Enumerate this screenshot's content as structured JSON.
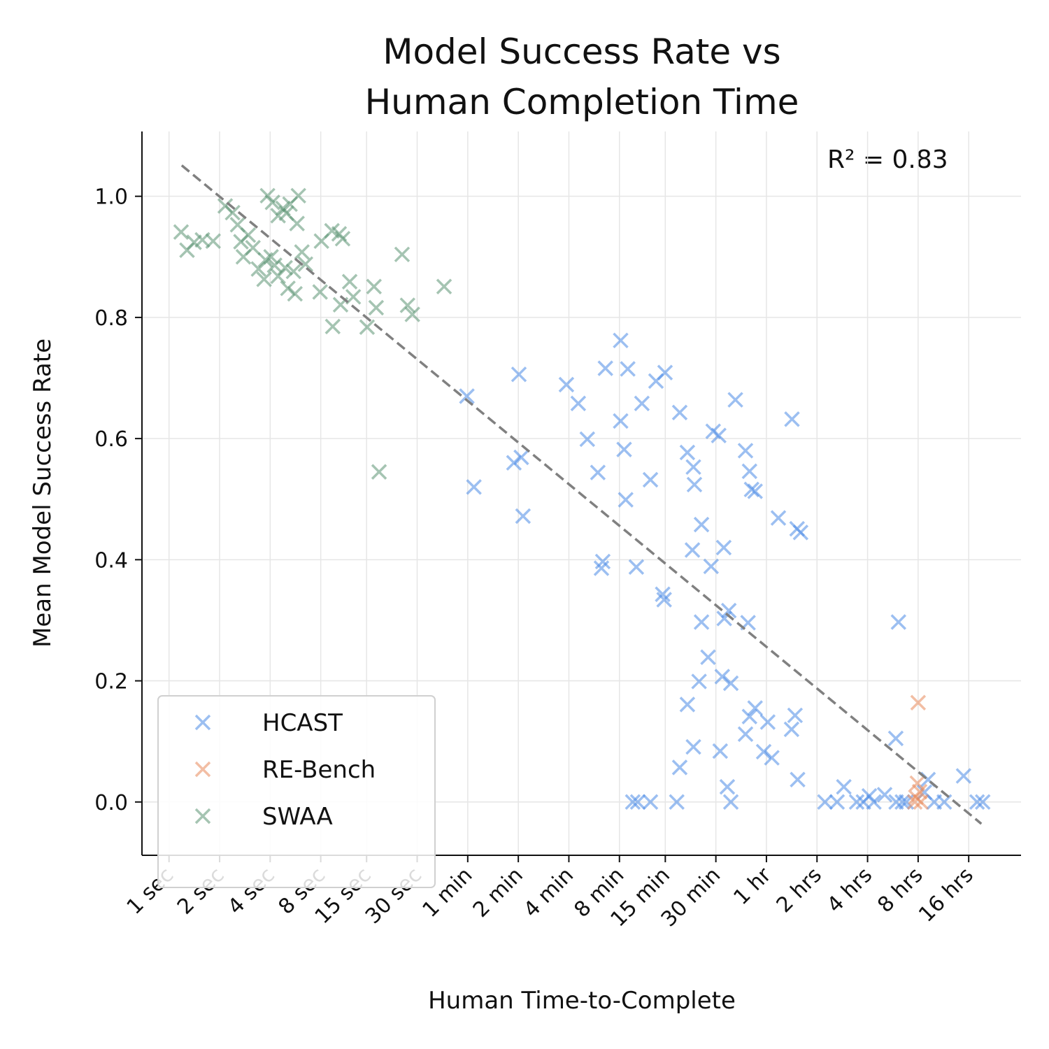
{
  "chart_data": {
    "type": "scatter",
    "title": "Model Success Rate vs\nHuman Completion Time",
    "xlabel": "Human Time-to-Complete",
    "ylabel": "Mean Model Success Rate",
    "annotation": "R² = 0.83",
    "xscale": "log",
    "grid": true,
    "legend": "lower left",
    "xlim": [
      0.69,
      118000
    ],
    "ylim": [
      -0.088,
      1.107
    ],
    "xticks": [
      {
        "value": 1,
        "label": "1 sec"
      },
      {
        "value": 2,
        "label": "2 sec"
      },
      {
        "value": 4,
        "label": "4 sec"
      },
      {
        "value": 8,
        "label": "8 sec"
      },
      {
        "value": 15,
        "label": "15 sec"
      },
      {
        "value": 30,
        "label": "30 sec"
      },
      {
        "value": 60,
        "label": "1 min"
      },
      {
        "value": 120,
        "label": "2 min"
      },
      {
        "value": 240,
        "label": "4 min"
      },
      {
        "value": 480,
        "label": "8 min"
      },
      {
        "value": 900,
        "label": "15 min"
      },
      {
        "value": 1800,
        "label": "30 min"
      },
      {
        "value": 3600,
        "label": "1 hr"
      },
      {
        "value": 7200,
        "label": "2 hrs"
      },
      {
        "value": 14400,
        "label": "4 hrs"
      },
      {
        "value": 28800,
        "label": "8 hrs"
      },
      {
        "value": 57600,
        "label": "16 hrs"
      }
    ],
    "yticks": [
      {
        "value": 0,
        "label": "0.0"
      },
      0.2,
      0.4,
      0.6,
      0.8,
      {
        "value": 1,
        "label": "1.0"
      }
    ],
    "trendline": {
      "color": "#808080",
      "x": [
        1.19,
        68500
      ],
      "y": [
        1.051,
        -0.036
      ]
    },
    "series": [
      {
        "name": "HCAST",
        "color": "#4a8ae6",
        "x": [
          59.3,
          65.3,
          121,
          113,
          125,
          128,
          232,
          273,
          309,
          357,
          396,
          382,
          375,
          488,
          538,
          488,
          512,
          523,
          605,
          653,
          734,
          792,
          897,
          868,
          886,
          1097,
          1218,
          1323,
          1342,
          1305,
          1478,
          1735,
          1872,
          1686,
          2006,
          2150,
          2020,
          2353,
          2702,
          2856,
          2937,
          3082,
          2798,
          1478,
          1618,
          1430,
          1218,
          1965,
          2210,
          3082,
          2856,
          2702,
          3665,
          3467,
          3875,
          4240,
          5480,
          5750,
          5110,
          5330,
          5080,
          5520,
          1323,
          1097,
          1910,
          2105,
          2210,
          1053,
          734,
          617,
          576,
          8030,
          9480,
          10400,
          12400,
          13600,
          14750,
          15700,
          18200,
          21300,
          23200,
          24500,
          22000,
          21200,
          31400,
          33000,
          35900,
          41200,
          53700,
          64600,
          69800
        ],
        "values": [
          0.67,
          0.52,
          0.706,
          0.56,
          0.569,
          0.472,
          0.689,
          0.658,
          0.599,
          0.544,
          0.716,
          0.397,
          0.386,
          0.762,
          0.715,
          0.629,
          0.582,
          0.499,
          0.388,
          0.658,
          0.532,
          0.695,
          0.709,
          0.343,
          0.334,
          0.643,
          0.577,
          0.553,
          0.524,
          0.416,
          0.458,
          0.612,
          0.605,
          0.389,
          0.42,
          0.316,
          0.303,
          0.664,
          0.58,
          0.546,
          0.516,
          0.513,
          0.296,
          0.297,
          0.239,
          0.199,
          0.161,
          0.207,
          0.196,
          0.155,
          0.141,
          0.112,
          0.132,
          0.083,
          0.073,
          0.469,
          0.451,
          0.445,
          0.632,
          0.143,
          0.12,
          0.037,
          0.091,
          0.057,
          0.084,
          0.025,
          0,
          0,
          0,
          0,
          0,
          0,
          0,
          0.025,
          0,
          0,
          0.01,
          0,
          0.012,
          0,
          0,
          0,
          0.297,
          0.105,
          0.016,
          0.037,
          0,
          0,
          0.043,
          0,
          0
        ]
      },
      {
        "name": "RE-Bench",
        "color": "#e8885a",
        "x": [
          28800,
          28500,
          29400,
          27900,
          29900,
          27500
        ],
        "values": [
          0.164,
          0.031,
          0.017,
          0.008,
          0,
          0
        ]
      },
      {
        "name": "SWAA",
        "color": "#5b9373",
        "x": [
          1.18,
          1.28,
          1.41,
          1.58,
          1.83,
          2.16,
          2.39,
          2.56,
          2.68,
          2.77,
          2.96,
          3.16,
          3.41,
          3.68,
          3.86,
          4.13,
          4.46,
          4.77,
          5.0,
          5.25,
          4.05,
          3.75,
          4.25,
          4.46,
          4.91,
          5.51,
          5.89,
          5.78,
          6.18,
          6.49,
          5.1,
          5.62,
          8.08,
          7.93,
          9.33,
          10.3,
          10.8,
          9.43,
          10.5,
          11.9,
          12.5,
          15.1,
          16.6,
          17.1,
          17.8,
          24.4,
          26.3,
          28.1,
          43.4
        ],
        "values": [
          0.941,
          0.911,
          0.924,
          0.928,
          0.926,
          0.984,
          0.973,
          0.953,
          0.925,
          0.9,
          0.936,
          0.915,
          0.88,
          0.863,
          1.001,
          0.99,
          0.968,
          0.98,
          0.972,
          0.987,
          0.9,
          0.895,
          0.886,
          0.868,
          0.882,
          0.876,
          1.001,
          0.955,
          0.908,
          0.888,
          0.848,
          0.839,
          0.926,
          0.842,
          0.943,
          0.938,
          0.93,
          0.785,
          0.821,
          0.859,
          0.834,
          0.784,
          0.851,
          0.816,
          0.545,
          0.904,
          0.82,
          0.805,
          0.851
        ]
      }
    ]
  }
}
